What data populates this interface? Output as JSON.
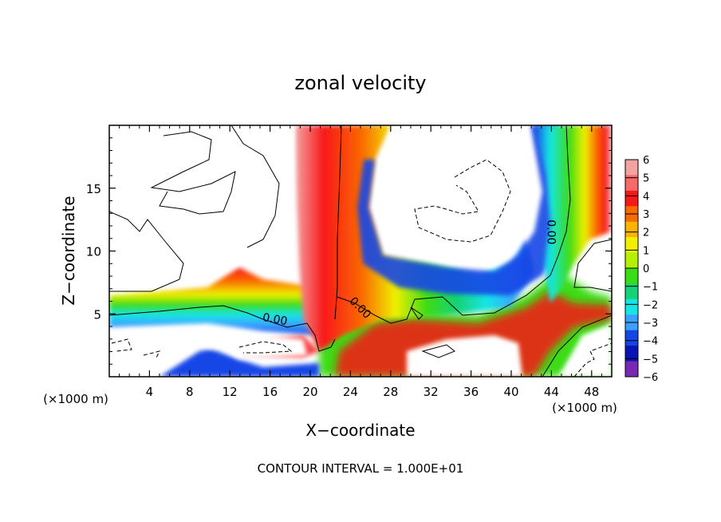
{
  "chart_data": {
    "type": "heatmap",
    "title": "zonal velocity",
    "xlabel": "X−coordinate",
    "ylabel": "Z−coordinate",
    "x_unit_label": "(×1000 m)",
    "y_unit_label": "(×1000 m)",
    "xlim": [
      0,
      50
    ],
    "ylim": [
      0,
      20
    ],
    "x_ticks": [
      4,
      8,
      12,
      16,
      20,
      24,
      28,
      32,
      36,
      40,
      44,
      48
    ],
    "y_ticks": [
      5,
      10,
      15
    ],
    "contour_labels": [
      {
        "text": "0.00",
        "x": 16.5,
        "z": 4.6
      },
      {
        "text": "0.00",
        "x": 25.0,
        "z": 5.5
      },
      {
        "text": "0.00",
        "x": 44.0,
        "z": 11.5
      }
    ],
    "colorbar": {
      "ticks": [
        "6",
        "5",
        "4",
        "3",
        "2",
        "1",
        "0",
        "−1",
        "−2",
        "−3",
        "−4",
        "−5",
        "−6"
      ],
      "colors": [
        "#f4a2a2",
        "#f86a6a",
        "#f81818",
        "#fa6a00",
        "#fcb400",
        "#f0f000",
        "#b4f000",
        "#3cdc14",
        "#14d278",
        "#14e6e6",
        "#3ca0ff",
        "#1446e6",
        "#0a14b4",
        "#7828b4"
      ]
    },
    "footer": "CONTOUR INTERVAL = 1.000E+01"
  }
}
